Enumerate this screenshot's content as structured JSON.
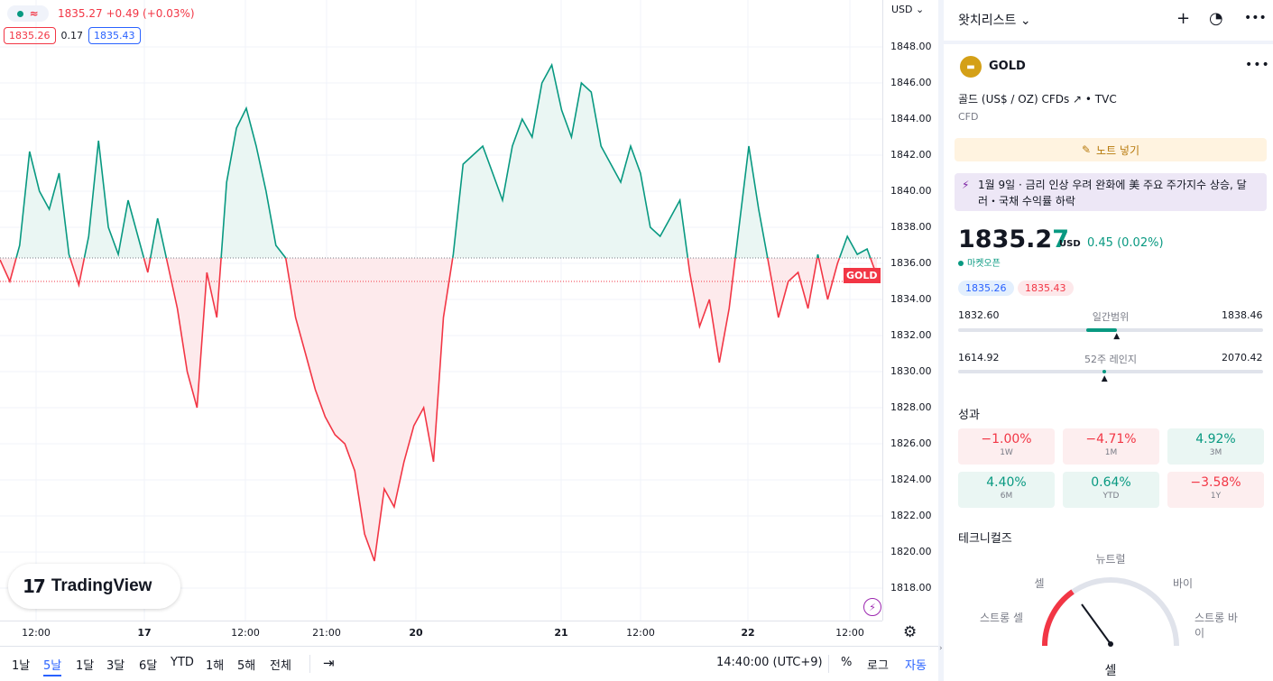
{
  "legend": {
    "price_line": "1835.27 +0.49 (+0.03%)",
    "bid": "1835.26",
    "spread": "0.17",
    "ask": "1835.43"
  },
  "chart": {
    "currency": "USD",
    "symbol_label": "GOLD",
    "price_ticks": [
      "1848.00",
      "1846.00",
      "1844.00",
      "1842.00",
      "1840.00",
      "1838.00",
      "1836.00",
      "1834.00",
      "1832.00",
      "1830.00",
      "1828.00",
      "1826.00",
      "1824.00",
      "1822.00",
      "1820.00",
      "1818.00"
    ],
    "time_ticks": [
      {
        "label": "12:00",
        "bold": false
      },
      {
        "label": "17",
        "bold": true
      },
      {
        "label": "12:00",
        "bold": false
      },
      {
        "label": "21:00",
        "bold": false
      },
      {
        "label": "20",
        "bold": true
      },
      {
        "label": "21",
        "bold": true
      },
      {
        "label": "12:00",
        "bold": false
      },
      {
        "label": "22",
        "bold": true
      },
      {
        "label": "12:00",
        "bold": false
      }
    ],
    "logo_text": "TradingView",
    "colors": {
      "up": "#089981",
      "down": "#f23645",
      "up_fill": "#eaf6f3",
      "down_fill": "#fdeaec"
    }
  },
  "chart_data": {
    "type": "area",
    "baseline": 1836.3,
    "ylim": [
      1817,
      1849
    ],
    "series": [
      {
        "values": [
          1836.2,
          1835.0,
          1837.0,
          1842.2,
          1840.0,
          1839.0,
          1841.0,
          1836.5,
          1834.8,
          1837.5,
          1842.8,
          1838.0,
          1836.5,
          1839.5,
          1837.5,
          1835.5,
          1838.5,
          1836.0,
          1833.5,
          1830.0,
          1828.0,
          1835.5,
          1833.0,
          1840.5,
          1843.5,
          1844.6,
          1842.5,
          1840.0,
          1837.0,
          1836.3,
          1833.0,
          1831.0,
          1829.0,
          1827.5,
          1826.5,
          1826.0,
          1824.5,
          1821.0,
          1819.5,
          1823.5,
          1822.5,
          1825.0,
          1827.0,
          1828.0,
          1825.0,
          1833.0,
          1836.5,
          1841.5,
          1842.0,
          1842.5,
          1841.0,
          1839.5,
          1842.5,
          1844.0,
          1843.0,
          1846.0,
          1847.0,
          1844.5,
          1843.0,
          1846.0,
          1845.5,
          1842.5,
          1841.5,
          1840.5,
          1842.5,
          1841.0,
          1838.0,
          1837.5,
          1838.5,
          1839.5,
          1835.5,
          1832.5,
          1834.0,
          1830.5,
          1833.5,
          1838.0,
          1842.5,
          1839.0,
          1836.0,
          1833.0,
          1835.0,
          1835.5,
          1833.5,
          1836.5,
          1834.0,
          1836.0,
          1837.5,
          1836.5,
          1836.8,
          1835.3
        ]
      }
    ]
  },
  "toolbar": {
    "ranges": [
      "1날",
      "5날",
      "1달",
      "3달",
      "6달",
      "YTD",
      "1해",
      "5해",
      "전체"
    ],
    "active_range_index": 1,
    "time": "14:40:00 (UTC+9)",
    "percent": "%",
    "log": "로그",
    "auto": "자동"
  },
  "panel": {
    "watchlist_title": "왓치리스트 ⌄",
    "symbol": "GOLD",
    "description": "골드 (US$ / OZ) CFDs ↗ • TVC",
    "type": "CFD",
    "note_button": "노트 넣기",
    "news": "1월 9일 · 금리 인상 우려 완화에 美 주요 주가지수 상승, 달러・국채 수익률 하락",
    "price_main": "1835.2",
    "price_tail": "7",
    "price_unit": "USD",
    "change": "0.45 (0.02%)",
    "market_status": "마켓오픈",
    "bid": "1835.26",
    "ask": "1835.43",
    "day_range": {
      "low": "1832.60",
      "label": "일간범위",
      "high": "1838.46",
      "position": 0.52
    },
    "week52_range": {
      "low": "1614.92",
      "label": "52주 레인지",
      "high": "2070.42",
      "position": 0.48
    },
    "performance_title": "성과",
    "performance": [
      {
        "value": "−1.00%",
        "period": "1W",
        "sign": "neg"
      },
      {
        "value": "−4.71%",
        "period": "1M",
        "sign": "neg"
      },
      {
        "value": "4.92%",
        "period": "3M",
        "sign": "pos"
      },
      {
        "value": "4.40%",
        "period": "6M",
        "sign": "pos"
      },
      {
        "value": "0.64%",
        "period": "YTD",
        "sign": "pos"
      },
      {
        "value": "−3.58%",
        "period": "1Y",
        "sign": "neg"
      }
    ],
    "technicals_title": "테크니컬즈",
    "gauge_labels": {
      "neutral": "뉴트럴",
      "sell": "셀",
      "buy": "바이",
      "strong_sell": "스트롱 셀",
      "strong_buy": "스트롱 바이"
    },
    "gauge_value": "셀"
  }
}
